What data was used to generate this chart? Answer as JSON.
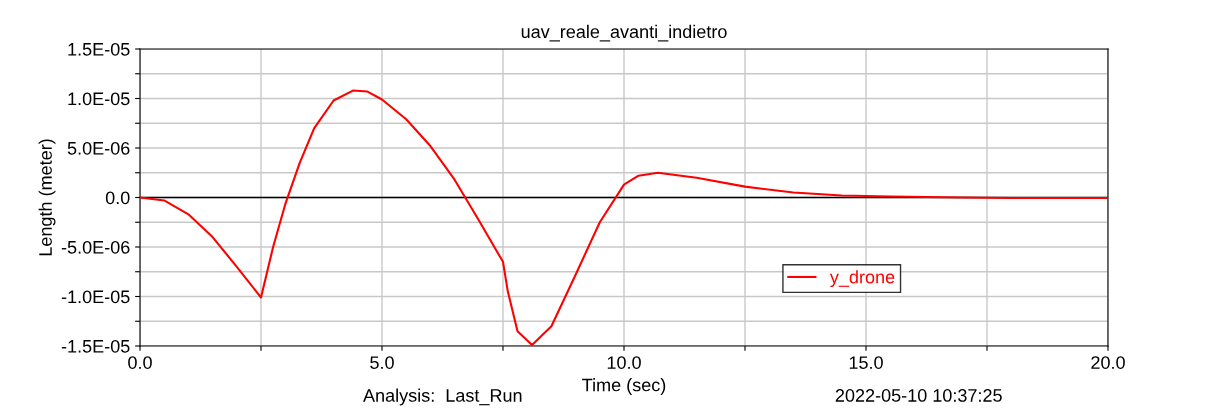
{
  "chart_data": {
    "type": "line",
    "title": "uav_reale_avanti_indietro",
    "xlabel": "Time (sec)",
    "ylabel": "Length (meter)",
    "annotations": [
      "Analysis:  Last_Run",
      "2022-05-10 10:37:25"
    ],
    "x": [
      0,
      0.5,
      1.0,
      1.5,
      2.0,
      2.5,
      2.75,
      3.0,
      3.3,
      3.6,
      4.0,
      4.4,
      4.7,
      5.0,
      5.5,
      6.0,
      6.5,
      7.0,
      7.5,
      7.6,
      7.8,
      8.1,
      8.5,
      9.0,
      9.5,
      10.0,
      10.3,
      10.7,
      11.5,
      12.5,
      13.5,
      14.5,
      15.5,
      17.0,
      18.0,
      20.0
    ],
    "series": [
      {
        "name": "y_drone",
        "color": "#ff0000",
        "values": [
          0,
          -3e-07,
          -1.7e-06,
          -4e-06,
          -7e-06,
          -1.01e-05,
          -5e-06,
          -7e-07,
          3.5e-06,
          7e-06,
          9.8e-06,
          1.08e-05,
          1.07e-05,
          9.9e-06,
          7.9e-06,
          5.2e-06,
          1.8e-06,
          -2.3e-06,
          -6.5e-06,
          -9.5e-06,
          -1.35e-05,
          -1.49e-05,
          -1.3e-05,
          -7.8e-06,
          -2.5e-06,
          1.3e-06,
          2.2e-06,
          2.5e-06,
          2e-06,
          1.1e-06,
          5e-07,
          2e-07,
          1e-07,
          0,
          -5e-08,
          -5e-08
        ]
      }
    ],
    "xlim": [
      0,
      20
    ],
    "ylim": [
      -1.5e-05,
      1.5e-05
    ],
    "xticks": [
      {
        "value": 0,
        "label": "0.0"
      },
      {
        "value": 2.5,
        "label": null
      },
      {
        "value": 5,
        "label": "5.0"
      },
      {
        "value": 7.5,
        "label": null
      },
      {
        "value": 10,
        "label": "10.0"
      },
      {
        "value": 12.5,
        "label": null
      },
      {
        "value": 15,
        "label": "15.0"
      },
      {
        "value": 17.5,
        "label": null
      },
      {
        "value": 20,
        "label": "20.0"
      }
    ],
    "yticks": [
      {
        "value": -1.5e-05,
        "label": "-1.5E-05"
      },
      {
        "value": -1.25e-05,
        "label": null
      },
      {
        "value": -1e-05,
        "label": "-1.0E-05"
      },
      {
        "value": -7.5e-06,
        "label": null
      },
      {
        "value": -5e-06,
        "label": "-5.0E-06"
      },
      {
        "value": -2.5e-06,
        "label": null
      },
      {
        "value": 0,
        "label": "0.0"
      },
      {
        "value": 2.5e-06,
        "label": null
      },
      {
        "value": 5e-06,
        "label": "5.0E-06"
      },
      {
        "value": 7.5e-06,
        "label": null
      },
      {
        "value": 1e-05,
        "label": "1.0E-05"
      },
      {
        "value": 1.25e-05,
        "label": null
      },
      {
        "value": 1.5e-05,
        "label": "1.5E-05"
      }
    ],
    "ref_lines": [
      {
        "axis": "y",
        "value": 0,
        "color": "#000000"
      }
    ],
    "grid": true,
    "legend": "bottom right",
    "marker": "none",
    "line_style": "solid"
  }
}
